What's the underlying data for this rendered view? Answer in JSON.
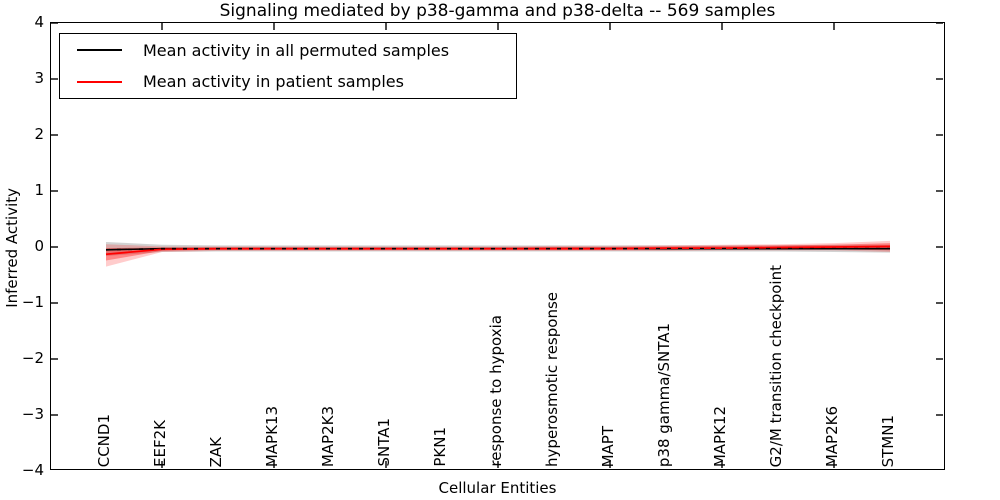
{
  "title": "Signaling mediated by p38-gamma and p38-delta -- 569 samples",
  "chart_data": {
    "type": "line",
    "title": "Signaling mediated by p38-gamma and p38-delta -- 569 samples",
    "xlabel": "Cellular Entities",
    "ylabel": "Inferred Activity",
    "ylim": [
      -4,
      4
    ],
    "ytick_values": [
      4,
      3,
      2,
      1,
      0,
      -1,
      -2,
      -3,
      -4
    ],
    "ytick_labels": [
      "4",
      "3",
      "2",
      "1",
      "0",
      "−1",
      "−2",
      "−3",
      "−4"
    ],
    "categories": [
      "CCND1",
      "EEF2K",
      "ZAK",
      "MAPK13",
      "MAP2K3",
      "SNTA1",
      "PKN1",
      "response to hypoxia",
      "hyperosmotic response",
      "MAPT",
      "p38 gamma/SNTA1",
      "MAPK12",
      "G2/M transition checkpoint",
      "MAP2K6",
      "STMN1"
    ],
    "legend": [
      {
        "label": "Mean activity in all permuted samples",
        "color": "#000000"
      },
      {
        "label": "Mean activity in patient samples",
        "color": "#ff0000"
      }
    ],
    "legend_position": "upper left",
    "grid": false,
    "series": [
      {
        "name": "Mean activity in all permuted samples",
        "color": "#000000",
        "values": [
          -0.05,
          -0.03,
          -0.03,
          -0.03,
          -0.03,
          -0.03,
          -0.03,
          -0.03,
          -0.03,
          -0.03,
          -0.03,
          -0.03,
          -0.03,
          -0.03,
          -0.03
        ]
      },
      {
        "name": "Mean activity in patient samples",
        "color": "#ff0000",
        "values": [
          -0.13,
          -0.04,
          -0.03,
          -0.03,
          -0.03,
          -0.03,
          -0.03,
          -0.03,
          -0.03,
          -0.03,
          -0.02,
          -0.02,
          -0.01,
          0.0,
          0.01
        ]
      }
    ],
    "bands": [
      {
        "name": "permuted-samples-range",
        "color": "#888888",
        "opacity": 0.38,
        "hi": [
          0.09,
          0.04,
          0.03,
          0.03,
          0.03,
          0.03,
          0.03,
          0.03,
          0.03,
          0.03,
          0.03,
          0.03,
          0.03,
          0.04,
          0.04
        ],
        "lo": [
          -0.16,
          -0.09,
          -0.08,
          -0.08,
          -0.08,
          -0.08,
          -0.08,
          -0.08,
          -0.08,
          -0.08,
          -0.08,
          -0.08,
          -0.08,
          -0.09,
          -0.1
        ]
      },
      {
        "name": "patient-samples-range-outer",
        "color": "#ff0000",
        "opacity": 0.2,
        "hi": [
          0.05,
          0.01,
          0.01,
          0.01,
          0.01,
          0.01,
          0.01,
          0.01,
          0.02,
          0.02,
          0.03,
          0.04,
          0.05,
          0.07,
          0.11
        ],
        "lo": [
          -0.35,
          -0.09,
          -0.07,
          -0.07,
          -0.07,
          -0.07,
          -0.07,
          -0.07,
          -0.07,
          -0.07,
          -0.07,
          -0.06,
          -0.06,
          -0.06,
          -0.09
        ]
      },
      {
        "name": "patient-samples-range-inner",
        "color": "#ff0000",
        "opacity": 0.34,
        "hi": [
          -0.02,
          -0.01,
          -0.01,
          -0.01,
          -0.01,
          -0.01,
          -0.01,
          -0.01,
          0.0,
          0.0,
          0.01,
          0.02,
          0.03,
          0.04,
          0.07
        ],
        "lo": [
          -0.24,
          -0.07,
          -0.05,
          -0.05,
          -0.05,
          -0.05,
          -0.05,
          -0.05,
          -0.05,
          -0.05,
          -0.05,
          -0.04,
          -0.04,
          -0.04,
          -0.06
        ]
      }
    ],
    "xtick_marks_at_indices": [
      1,
      3,
      5,
      7,
      9,
      11,
      13
    ]
  }
}
